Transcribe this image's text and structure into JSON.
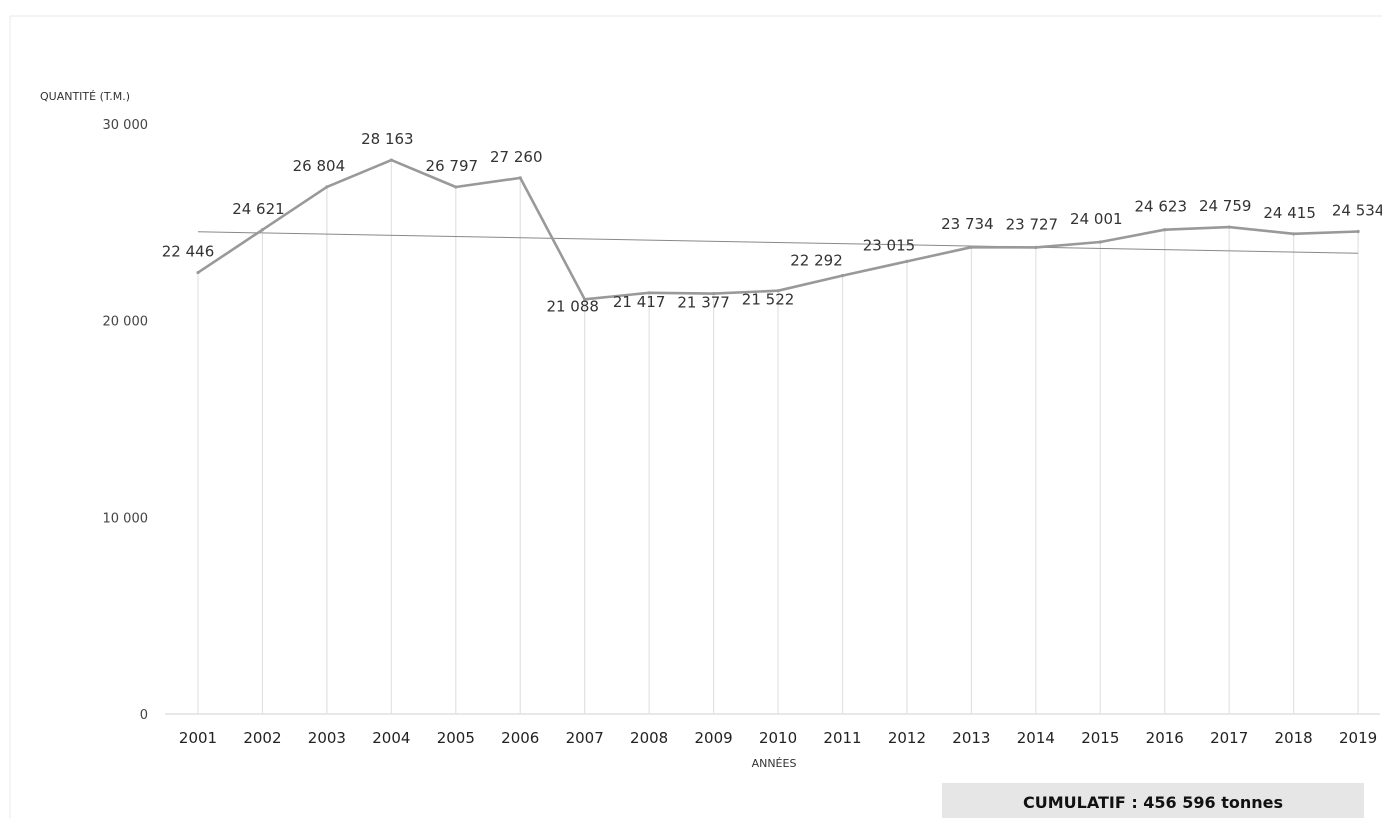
{
  "chart_data": {
    "type": "line",
    "ylabel": "QUANTITÉ (T.M.)",
    "xlabel": "ANNÉES",
    "categories": [
      "2001",
      "2002",
      "2003",
      "2004",
      "2005",
      "2006",
      "2007",
      "2008",
      "2009",
      "2010",
      "2011",
      "2012",
      "2013",
      "2014",
      "2015",
      "2016",
      "2017",
      "2018",
      "2019"
    ],
    "values": [
      22446,
      24621,
      26804,
      28163,
      26797,
      27260,
      21088,
      21417,
      21377,
      21522,
      22292,
      23015,
      23734,
      23727,
      24001,
      24623,
      24759,
      24415,
      24534
    ],
    "value_labels": [
      "22 446",
      "24 621",
      "26 804",
      "28 163",
      "26 797",
      "27 260",
      "21 088",
      "21 417",
      "21 377",
      "21 522",
      "22 292",
      "23 015",
      "23 734",
      "23 727",
      "24 001",
      "24 623",
      "24 759",
      "24 415",
      "24 534"
    ],
    "yticks": [
      0,
      10000,
      20000,
      30000
    ],
    "ytick_labels": [
      "0",
      "10 000",
      "20 000",
      "30 000"
    ],
    "ylim": [
      0,
      30000
    ],
    "trendline": {
      "type": "linear",
      "start": 24520,
      "end": 23430
    },
    "grid": "vertical",
    "legend": "none",
    "annotation": "CUMULATIF : 456 596 tonnes",
    "colors": {
      "line": "#999999",
      "trend": "#888888",
      "grid": "#e2e2e2",
      "annotation_box": "#e6e6e6"
    }
  }
}
